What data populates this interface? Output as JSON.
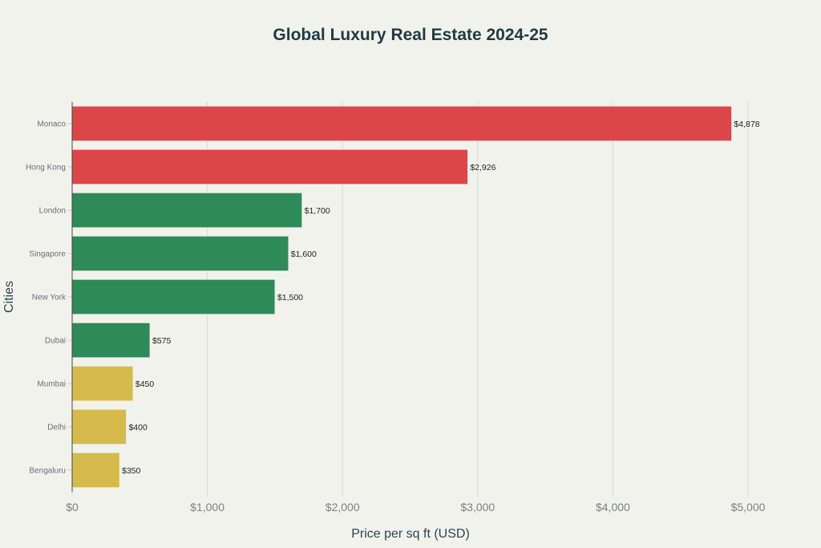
{
  "chart_data": {
    "type": "bar",
    "orientation": "horizontal",
    "title": "Global Luxury Real Estate 2024-25",
    "xlabel": "Price per sq ft (USD)",
    "ylabel": "Cities",
    "xlim": [
      0,
      5000
    ],
    "x_ticks": [
      0,
      1000,
      2000,
      3000,
      4000,
      5000
    ],
    "x_tick_labels": [
      "$0",
      "$1,000",
      "$2,000",
      "$3,000",
      "$4,000",
      "$5,000"
    ],
    "grid": true,
    "categories": [
      "Monaco",
      "Hong Kong",
      "London",
      "Singapore",
      "New York",
      "Dubai",
      "Mumbai",
      "Delhi",
      "Bengaluru"
    ],
    "values": [
      4878,
      2926,
      1700,
      1600,
      1500,
      575,
      450,
      400,
      350
    ],
    "data_labels": [
      "$4,878",
      "$2,926",
      "$1,700",
      "$1,600",
      "$1,500",
      "$575",
      "$450",
      "$400",
      "$350"
    ],
    "tiers": [
      "high",
      "high",
      "mid",
      "mid",
      "mid",
      "mid",
      "low",
      "low",
      "low"
    ],
    "colors": {
      "high": "#dc4649",
      "mid": "#2e8b57",
      "low": "#d4bb4c"
    },
    "text_color": "#1f3b40",
    "background": "#f2f2ed"
  }
}
